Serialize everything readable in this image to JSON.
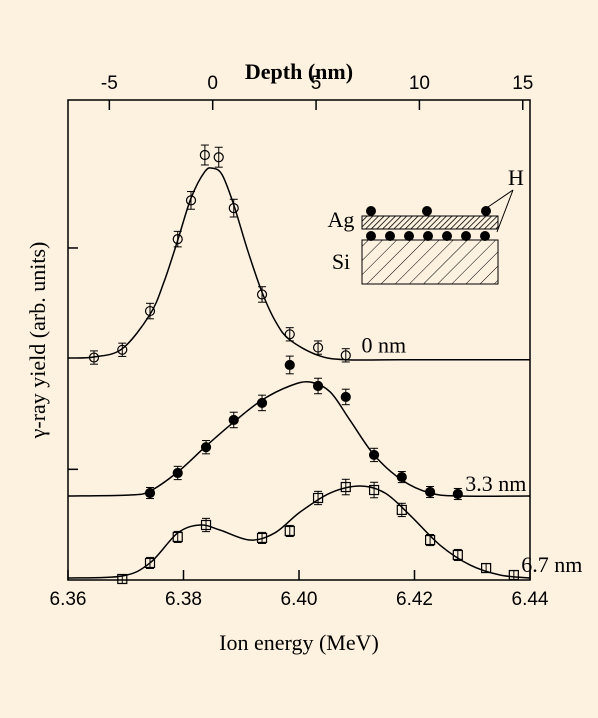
{
  "chart_data": {
    "type": "scatter",
    "xlabel": "Ion energy (MeV)",
    "ylabel": "γ-ray yield (arb. units)",
    "x2label": "Depth (nm)",
    "xlim": [
      6.36,
      6.44
    ],
    "xticks": [
      6.36,
      6.38,
      {
        "value": 6.4,
        "label": "6.40"
      },
      6.42,
      6.44
    ],
    "x2lim": [
      -7.0,
      15.35
    ],
    "x2ticks": [
      -5,
      0,
      5,
      10,
      15
    ],
    "ylim": [
      0,
      4.337
    ],
    "yticks": [
      1,
      3
    ],
    "ytick_labels": false,
    "series": [
      {
        "label": "0 nm",
        "marker": "open-circle",
        "color": "#000000",
        "x": [
          6.3645,
          6.3694,
          6.3742,
          6.379,
          6.3813,
          6.3837,
          6.3861,
          6.3887,
          6.3936,
          6.3984,
          6.4033,
          6.4081
        ],
        "values": [
          2.01,
          2.08,
          2.43,
          3.08,
          3.43,
          3.84,
          3.82,
          3.36,
          2.58,
          2.22,
          2.1,
          2.03
        ],
        "errors": [
          0.06,
          0.06,
          0.07,
          0.07,
          0.08,
          0.09,
          0.09,
          0.08,
          0.07,
          0.06,
          0.06,
          0.06
        ]
      },
      {
        "label": "3.3 nm",
        "marker": "filled-circle",
        "color": "#000000",
        "x": [
          6.3742,
          6.379,
          6.3839,
          6.3887,
          6.3936,
          6.3984,
          6.4033,
          6.4081,
          6.413,
          6.4178,
          6.4227,
          6.4275
        ],
        "values": [
          0.786,
          0.967,
          1.2,
          1.446,
          1.6,
          1.943,
          1.753,
          1.654,
          1.13,
          0.93,
          0.795,
          0.777
        ],
        "errors": [
          0.05,
          0.06,
          0.06,
          0.07,
          0.07,
          0.08,
          0.07,
          0.07,
          0.06,
          0.05,
          0.05,
          0.05
        ]
      },
      {
        "label": "6.7 nm",
        "marker": "open-square",
        "color": "#000000",
        "x": [
          6.3694,
          6.3742,
          6.379,
          6.3839,
          6.3936,
          6.3984,
          6.4033,
          6.4081,
          6.413,
          6.4178,
          6.4227,
          6.4275,
          6.4324,
          6.4372
        ],
        "values": [
          0.009,
          0.154,
          0.389,
          0.497,
          0.38,
          0.443,
          0.741,
          0.84,
          0.813,
          0.633,
          0.361,
          0.226,
          0.108,
          0.045
        ],
        "errors": [
          0.04,
          0.05,
          0.05,
          0.06,
          0.05,
          0.05,
          0.06,
          0.07,
          0.07,
          0.06,
          0.05,
          0.05,
          0.04,
          0.04
        ]
      },
      {
        "marker": "line",
        "color": "#000000",
        "x": [
          6.36,
          6.3645,
          6.3694,
          6.3742,
          6.3766,
          6.379,
          6.3813,
          6.3837,
          6.3851,
          6.3867,
          6.3887,
          6.3911,
          6.3936,
          6.396,
          6.3984,
          6.4033,
          6.4081,
          6.4175,
          6.44
        ],
        "values": [
          2.006,
          2.015,
          2.09,
          2.4,
          2.69,
          3.07,
          3.45,
          3.69,
          3.72,
          3.66,
          3.39,
          2.98,
          2.6,
          2.33,
          2.17,
          2.03,
          1.99,
          1.99,
          1.99
        ]
      },
      {
        "marker": "line",
        "color": "#000000",
        "x": [
          6.36,
          6.3707,
          6.3742,
          6.379,
          6.3839,
          6.3887,
          6.3936,
          6.3984,
          6.4019,
          6.4054,
          6.4088,
          6.413,
          6.4178,
          6.4227,
          6.4279,
          6.44
        ],
        "values": [
          0.759,
          0.768,
          0.804,
          0.976,
          1.21,
          1.427,
          1.626,
          1.753,
          1.789,
          1.699,
          1.446,
          1.13,
          0.904,
          0.786,
          0.759,
          0.759
        ]
      },
      {
        "marker": "line",
        "color": "#000000",
        "x": [
          6.36,
          6.3694,
          6.3742,
          6.379,
          6.3829,
          6.3863,
          6.3915,
          6.3958,
          6.4002,
          6.4054,
          6.4106,
          6.4149,
          6.4192,
          6.4244,
          6.4296,
          6.4348,
          6.44
        ],
        "values": [
          0.018,
          0.036,
          0.154,
          0.425,
          0.497,
          0.452,
          0.361,
          0.425,
          0.614,
          0.786,
          0.849,
          0.786,
          0.587,
          0.316,
          0.136,
          0.045,
          0.018
        ]
      }
    ],
    "inset": {
      "top_layer": "Ag",
      "substrate": "Si",
      "hydrogen": "H"
    }
  }
}
